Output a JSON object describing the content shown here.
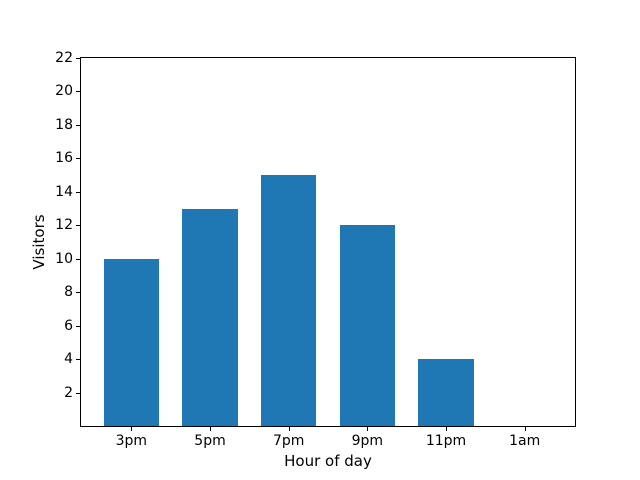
{
  "figure": {
    "background": "#ffffff",
    "spine_color": "#000000",
    "text_color": "#000000"
  },
  "chart_data": {
    "type": "bar",
    "title": "",
    "xlabel": "Hour of day",
    "ylabel": "Visitors",
    "categories": [
      "3pm",
      "5pm",
      "7pm",
      "9pm",
      "11pm",
      "1am"
    ],
    "values": [
      10,
      13,
      15,
      12,
      4,
      0
    ],
    "ylim": [
      0,
      22
    ],
    "yticks": [
      2,
      4,
      6,
      8,
      10,
      12,
      14,
      16,
      18,
      20,
      22
    ],
    "bar_color": "#1f77b4",
    "grid": false,
    "legend": null
  }
}
